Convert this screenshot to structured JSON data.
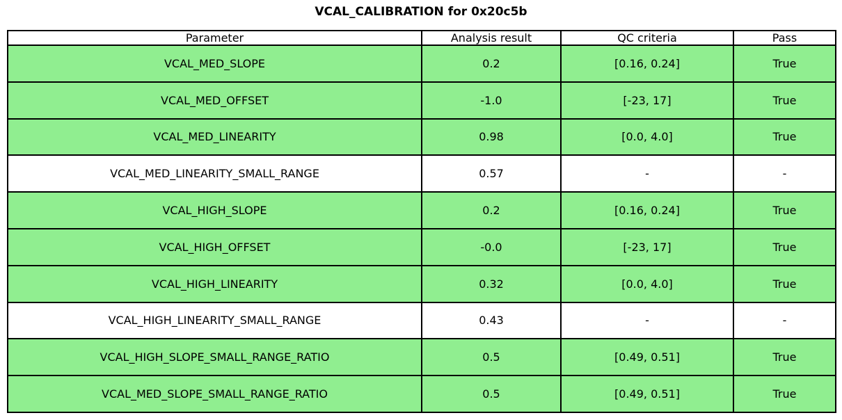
{
  "chart_data": {
    "type": "table",
    "title": "VCAL_CALIBRATION for 0x20c5b",
    "columns": [
      "Parameter",
      "Analysis result",
      "QC criteria",
      "Pass"
    ],
    "rows": [
      {
        "cells": [
          "VCAL_MED_SLOPE",
          "0.2",
          "[0.16, 0.24]",
          "True"
        ],
        "highlighted": true
      },
      {
        "cells": [
          "VCAL_MED_OFFSET",
          "-1.0",
          "[-23, 17]",
          "True"
        ],
        "highlighted": true
      },
      {
        "cells": [
          "VCAL_MED_LINEARITY",
          "0.98",
          "[0.0, 4.0]",
          "True"
        ],
        "highlighted": true
      },
      {
        "cells": [
          "VCAL_MED_LINEARITY_SMALL_RANGE",
          "0.57",
          "-",
          "-"
        ],
        "highlighted": false
      },
      {
        "cells": [
          "VCAL_HIGH_SLOPE",
          "0.2",
          "[0.16, 0.24]",
          "True"
        ],
        "highlighted": true
      },
      {
        "cells": [
          "VCAL_HIGH_OFFSET",
          "-0.0",
          "[-23, 17]",
          "True"
        ],
        "highlighted": true
      },
      {
        "cells": [
          "VCAL_HIGH_LINEARITY",
          "0.32",
          "[0.0, 4.0]",
          "True"
        ],
        "highlighted": true
      },
      {
        "cells": [
          "VCAL_HIGH_LINEARITY_SMALL_RANGE",
          "0.43",
          "-",
          "-"
        ],
        "highlighted": false
      },
      {
        "cells": [
          "VCAL_HIGH_SLOPE_SMALL_RANGE_RATIO",
          "0.5",
          "[0.49, 0.51]",
          "True"
        ],
        "highlighted": true
      },
      {
        "cells": [
          "VCAL_MED_SLOPE_SMALL_RANGE_RATIO",
          "0.5",
          "[0.49, 0.51]",
          "True"
        ],
        "highlighted": true
      }
    ],
    "layout": {
      "grid": true,
      "header_background": "#ffffff"
    }
  },
  "colors": {
    "pass_row_bg": "#90ee90",
    "neutral_row_bg": "#ffffff",
    "border": "#000000",
    "text": "#000000"
  }
}
